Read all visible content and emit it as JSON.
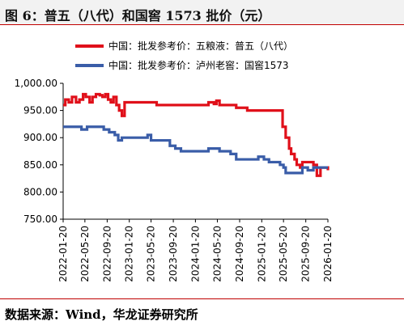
{
  "title": "图 6：普五（八代）和国窖 1573 批价（元）",
  "source": "数据来源：Wind，华龙证券研究所",
  "chart_data": {
    "type": "line",
    "title": "",
    "xlabel": "",
    "ylabel": "",
    "xlim": [
      "2022-01-20",
      "2026-01-20"
    ],
    "ylim": [
      750,
      1000
    ],
    "yticks": [
      750,
      800,
      850,
      900,
      950,
      1000
    ],
    "ytick_labels": [
      "750.00",
      "800.00",
      "850.00",
      "900.00",
      "950.00",
      "1,000.00"
    ],
    "xticks": [
      "2022-01-20",
      "2022-05-20",
      "2022-09-20",
      "2023-01-20",
      "2023-05-20",
      "2023-09-20",
      "2024-01-20",
      "2024-05-20",
      "2024-09-20",
      "2025-01-20",
      "2025-05-20",
      "2025-09-20",
      "2026-01-20"
    ],
    "grid": false,
    "legend_position": "top-center",
    "series": [
      {
        "name": "中国：批发参考价：五粮液：普五（八代）",
        "color": "#e0101a",
        "points": [
          [
            "2022-01-20",
            960
          ],
          [
            "2022-02-01",
            970
          ],
          [
            "2022-02-20",
            965
          ],
          [
            "2022-03-10",
            975
          ],
          [
            "2022-04-01",
            965
          ],
          [
            "2022-04-20",
            970
          ],
          [
            "2022-05-10",
            980
          ],
          [
            "2022-05-25",
            975
          ],
          [
            "2022-06-15",
            965
          ],
          [
            "2022-07-01",
            975
          ],
          [
            "2022-07-20",
            980
          ],
          [
            "2022-08-10",
            978
          ],
          [
            "2022-08-25",
            975
          ],
          [
            "2022-09-10",
            980
          ],
          [
            "2022-09-25",
            970
          ],
          [
            "2022-10-10",
            965
          ],
          [
            "2022-10-25",
            975
          ],
          [
            "2022-11-10",
            960
          ],
          [
            "2022-11-25",
            950
          ],
          [
            "2022-12-10",
            940
          ],
          [
            "2022-12-25",
            965
          ],
          [
            "2023-02-01",
            965
          ],
          [
            "2023-04-01",
            965
          ],
          [
            "2023-05-20",
            965
          ],
          [
            "2023-06-20",
            960
          ],
          [
            "2023-09-01",
            960
          ],
          [
            "2023-10-01",
            960
          ],
          [
            "2024-01-20",
            960
          ],
          [
            "2024-03-15",
            960
          ],
          [
            "2024-04-01",
            965
          ],
          [
            "2024-05-01",
            962
          ],
          [
            "2024-05-15",
            968
          ],
          [
            "2024-06-01",
            960
          ],
          [
            "2024-07-01",
            960
          ],
          [
            "2024-08-01",
            960
          ],
          [
            "2024-09-01",
            955
          ],
          [
            "2024-11-01",
            950
          ],
          [
            "2025-02-01",
            950
          ],
          [
            "2025-04-01",
            950
          ],
          [
            "2025-05-01",
            950
          ],
          [
            "2025-05-15",
            920
          ],
          [
            "2025-06-01",
            900
          ],
          [
            "2025-06-20",
            880
          ],
          [
            "2025-07-01",
            870
          ],
          [
            "2025-07-20",
            860
          ],
          [
            "2025-08-01",
            850
          ],
          [
            "2025-08-20",
            845
          ],
          [
            "2025-09-01",
            855
          ],
          [
            "2025-10-01",
            855
          ],
          [
            "2025-11-01",
            850
          ],
          [
            "2025-11-20",
            830
          ],
          [
            "2025-12-10",
            845
          ],
          [
            "2026-01-20",
            840
          ]
        ]
      },
      {
        "name": "中国：批发参考价：泸州老窖：国窖1573",
        "color": "#3a5da8",
        "points": [
          [
            "2022-01-20",
            920
          ],
          [
            "2022-04-01",
            920
          ],
          [
            "2022-05-01",
            915
          ],
          [
            "2022-06-01",
            920
          ],
          [
            "2022-08-01",
            920
          ],
          [
            "2022-09-01",
            915
          ],
          [
            "2022-10-01",
            910
          ],
          [
            "2022-11-01",
            905
          ],
          [
            "2022-11-20",
            895
          ],
          [
            "2022-12-10",
            900
          ],
          [
            "2023-01-01",
            900
          ],
          [
            "2023-01-20",
            900
          ],
          [
            "2023-04-01",
            900
          ],
          [
            "2023-05-01",
            905
          ],
          [
            "2023-05-20",
            895
          ],
          [
            "2023-07-01",
            895
          ],
          [
            "2023-09-01",
            885
          ],
          [
            "2023-10-01",
            880
          ],
          [
            "2023-11-01",
            875
          ],
          [
            "2024-01-20",
            875
          ],
          [
            "2024-03-01",
            875
          ],
          [
            "2024-04-01",
            880
          ],
          [
            "2024-06-01",
            875
          ],
          [
            "2024-07-01",
            875
          ],
          [
            "2024-08-01",
            870
          ],
          [
            "2024-09-01",
            860
          ],
          [
            "2024-12-01",
            860
          ],
          [
            "2025-01-01",
            865
          ],
          [
            "2025-02-01",
            860
          ],
          [
            "2025-03-01",
            855
          ],
          [
            "2025-04-01",
            855
          ],
          [
            "2025-05-01",
            850
          ],
          [
            "2025-05-20",
            845
          ],
          [
            "2025-06-01",
            835
          ],
          [
            "2025-08-01",
            835
          ],
          [
            "2025-09-01",
            845
          ],
          [
            "2025-10-01",
            840
          ],
          [
            "2025-11-01",
            845
          ],
          [
            "2025-12-01",
            845
          ],
          [
            "2026-01-20",
            845
          ]
        ]
      }
    ]
  }
}
